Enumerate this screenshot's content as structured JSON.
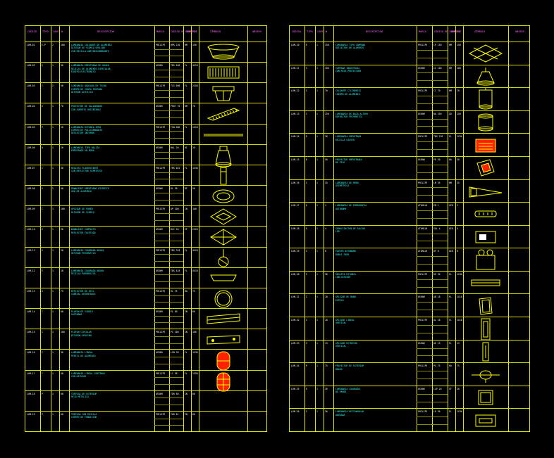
{
  "colors": {
    "background": "#000000",
    "grid": "#e6e600",
    "header_text": "#ff66ff",
    "text_cyan": "#33ffff",
    "text_white": "#ffffff",
    "symbol": "#ffff00",
    "accent_red": "#ff2200"
  },
  "left_sheet": {
    "headers": [
      "CÓDIGO",
      "TIPO",
      "CANT",
      "W",
      "DESCRIPCIÓN",
      "MARCA",
      "CÓDIGO DE FÁBRICA",
      "LAMP",
      "POT",
      "SÍMBOLO",
      "OBSERV."
    ],
    "rows": [
      {
        "code": "LUM-01",
        "col2": "E-P",
        "col3": "2",
        "col4": "100",
        "desc": [
          "LUMINARIA COLGANTE DE ALUMINIO",
          "DIFUSOR DE VIDRIO OPALINO",
          "CON REJILLA ANTIDESLUMBRANTE"
        ],
        "brand": "PHILIPS",
        "model": "HPK 150",
        "lamp": "HM",
        "pot": "150"
      },
      {
        "code": "LUM-02",
        "col2": "E",
        "col3": "1",
        "col4": "36",
        "desc": [
          "LUMINARIA EMPOTRADA DE 60X60",
          "REJILLA DE ALUMINIO ESPECULAR",
          "EQUIPO ELECTRÓNICO"
        ],
        "brand": "OSRAM",
        "model": "TBS 460",
        "lamp": "FL",
        "pot": "4X18"
      },
      {
        "code": "LUM-03",
        "col2": "C",
        "col3": "2",
        "col4": "58",
        "desc": [
          "LUMINARIA ADOSADA DE TECHO",
          "CUERPO DE CHAPA PINTADA",
          "DIFUSOR ACRÍLICO"
        ],
        "brand": "PHILIPS",
        "model": "TCS 098",
        "lamp": "FL",
        "pot": "2X58"
      },
      {
        "code": "LUM-04",
        "col2": "E",
        "col3": "1",
        "col4": "70",
        "desc": [
          "PROYECTOR DE HALOGENURO",
          "CON SOPORTE ORIENTABLE"
        ],
        "brand": "OSRAM",
        "model": "PROY 70",
        "lamp": "HM",
        "pot": "70"
      },
      {
        "code": "LUM-05",
        "col2": "P",
        "col3": "1",
        "col4": "18",
        "desc": [
          "LUMINARIA ESTANCA IP65",
          "CUERPO DE POLICARBONATO",
          "REFLECTOR INTERNO"
        ],
        "brand": "PHILIPS",
        "model": "TCW 060",
        "lamp": "FL",
        "pot": "1X18"
      },
      {
        "code": "LUM-06",
        "col2": "A",
        "col3": "1",
        "col4": "20",
        "desc": [
          "LUMINARIA TIPO BALIZA",
          "EMPOTRADA EN MURO"
        ],
        "brand": "OSRAM",
        "model": "BAL 20",
        "lamp": "DI",
        "pot": "20"
      },
      {
        "code": "LUM-07",
        "col2": "C",
        "col3": "1",
        "col4": "36",
        "desc": [
          "REGLETA FLUORESCENTE",
          "CON REFLECTOR SIMÉTRICO"
        ],
        "brand": "PHILIPS",
        "model": "TMS 022",
        "lamp": "FL",
        "pot": "1X36"
      },
      {
        "code": "LUM-08",
        "col2": "E",
        "col3": "2",
        "col4": "50",
        "desc": [
          "DOWNLIGHT EMPOTRADO DICROICO",
          "ARO DE ALUMINIO"
        ],
        "brand": "OSRAM",
        "model": "DL 50",
        "lamp": "DI",
        "pot": "50"
      },
      {
        "code": "LUM-09",
        "col2": "C",
        "col3": "1",
        "col4": "100",
        "desc": [
          "APLIQUE DE PARED",
          "DIFUSOR DE VIDRIO"
        ],
        "brand": "PHILIPS",
        "model": "AP 100",
        "lamp": "IN",
        "pot": "100"
      },
      {
        "code": "LUM-10",
        "col2": "E",
        "col3": "1",
        "col4": "26",
        "desc": [
          "DOWNLIGHT COMPACTO",
          "REFLECTOR FACETADO"
        ],
        "brand": "OSRAM",
        "model": "DLC 26",
        "lamp": "CF",
        "pot": "2X26"
      },
      {
        "code": "LUM-11",
        "col2": "E",
        "col3": "1",
        "col4": "18",
        "desc": [
          "LUMINARIA CUADRADA 60X60",
          "DIFUSOR PRISMÁTICO"
        ],
        "brand": "PHILIPS",
        "model": "TBS 318",
        "lamp": "FL",
        "pot": "4X18"
      },
      {
        "code": "LUM-12",
        "col2": "E",
        "col3": "1",
        "col4": "18",
        "desc": [
          "LUMINARIA CUADRADA 60X60",
          "REJILLA PARABÓLICA"
        ],
        "brand": "OSRAM",
        "model": "TBS 418",
        "lamp": "FL",
        "pot": "4X18"
      },
      {
        "code": "LUM-13",
        "col2": "C",
        "col3": "1",
        "col4": "75",
        "desc": [
          "REFLECTOR DE RIEL",
          "CABEZAL ORIENTABLE"
        ],
        "brand": "PHILIPS",
        "model": "RL 75",
        "lamp": "HA",
        "pot": "75"
      },
      {
        "code": "LUM-14",
        "col2": "C",
        "col3": "1",
        "col4": "60",
        "desc": [
          "PLAFÓN DE VIDRIO",
          "SATINADO"
        ],
        "brand": "OSRAM",
        "model": "PL 60",
        "lamp": "IN",
        "pot": "60"
      },
      {
        "code": "LUM-15",
        "col2": "C",
        "col3": "1",
        "col4": "100",
        "desc": [
          "PLAFÓN CIRCULAR",
          "DIFUSOR OPALINO"
        ],
        "brand": "PHILIPS",
        "model": "PC 100",
        "lamp": "IN",
        "pot": "100"
      },
      {
        "code": "LUM-16",
        "col2": "C",
        "col3": "1",
        "col4": "36",
        "desc": [
          "LUMINARIA LINEAL",
          "PERFIL DE ALUMINIO"
        ],
        "brand": "OSRAM",
        "model": "LIN 36",
        "lamp": "FL",
        "pot": "1X36"
      },
      {
        "code": "LUM-17",
        "col2": "C",
        "col3": "1",
        "col4": "58",
        "desc": [
          "LUMINARIA LINEAL CONTINUA",
          "CON DIFUSOR"
        ],
        "brand": "PHILIPS",
        "model": "LC 58",
        "lamp": "FL",
        "pot": "1X58"
      },
      {
        "code": "LUM-18",
        "col2": "P",
        "col3": "1",
        "col4": "60",
        "desc": [
          "TORTUGA DE EXTERIOR",
          "REJA METÁLICA"
        ],
        "brand": "OSRAM",
        "model": "TOR 60",
        "lamp": "IN",
        "pot": "60"
      },
      {
        "code": "LUM-19",
        "col2": "P",
        "col3": "1",
        "col4": "60",
        "desc": [
          "TORTUGA CON REJILLA",
          "CUERPO DE FUNDICIÓN"
        ],
        "brand": "PHILIPS",
        "model": "TOR 61",
        "lamp": "IN",
        "pot": "60"
      }
    ]
  },
  "right_sheet": {
    "headers": [
      "CÓDIGO",
      "TIPO",
      "CANT",
      "W",
      "DESCRIPCIÓN",
      "MARCA",
      "CÓDIGO DE FÁBRICA",
      "LAMP",
      "POT",
      "SÍMBOLO",
      "OBSERV."
    ],
    "rows": [
      {
        "code": "LUM-20",
        "col2": "E",
        "col3": "1",
        "col4": "150",
        "desc": [
          "LUMINARIA TIPO CAMPANA",
          "REFLECTOR DE ALUMINIO"
        ],
        "brand": "PHILIPS",
        "model": "CP 150",
        "lamp": "HM",
        "pot": "150"
      },
      {
        "code": "LUM-21",
        "col2": "C",
        "col3": "1",
        "col4": "100",
        "desc": [
          "CAMPANA INDUSTRIAL",
          "CON REJA PROTECTORA"
        ],
        "brand": "OSRAM",
        "model": "CI 100",
        "lamp": "HM",
        "pot": "100"
      },
      {
        "code": "LUM-22",
        "col2": "C",
        "col3": "1",
        "col4": "70",
        "desc": [
          "COLGANTE CILÍNDRICO",
          "CUERPO DE ALUMINIO"
        ],
        "brand": "PHILIPS",
        "model": "CC 70",
        "lamp": "HM",
        "pot": "70"
      },
      {
        "code": "LUM-23",
        "col2": "C",
        "col3": "1",
        "col4": "250",
        "desc": [
          "LUMINARIA DE BAJA ALTURA",
          "REFRACTOR PRISMÁTICO"
        ],
        "brand": "OSRAM",
        "model": "BA 250",
        "lamp": "SO",
        "pot": "250"
      },
      {
        "code": "LUM-24",
        "col2": "E",
        "col3": "1",
        "col4": "36",
        "desc": [
          "LUMINARIA EMPOTRADA",
          "REJILLA LOUVER"
        ],
        "brand": "PHILIPS",
        "model": "TBS 236",
        "lamp": "FL",
        "pot": "2X36"
      },
      {
        "code": "LUM-25",
        "col2": "E",
        "col3": "1",
        "col4": "50",
        "desc": [
          "PROYECTOR EMPOTRABLE",
          "DE PISO"
        ],
        "brand": "OSRAM",
        "model": "PE 50",
        "lamp": "HA",
        "pot": "50"
      },
      {
        "code": "LUM-26",
        "col2": "C",
        "col3": "1",
        "col4": "35",
        "desc": [
          "LUMINARIA DE MURO",
          "ASIMÉTRICA"
        ],
        "brand": "PHILIPS",
        "model": "LM 35",
        "lamp": "HM",
        "pot": "35"
      },
      {
        "code": "LUM-27",
        "col2": "E",
        "col3": "1",
        "col4": "1",
        "desc": [
          "LUMINARIA DE EMERGENCIA",
          "AUTÓNOMA"
        ],
        "brand": "ATOMLUX",
        "model": "EM 1",
        "lamp": "LED",
        "pot": "1"
      },
      {
        "code": "LUM-28",
        "col2": "E",
        "col3": "1",
        "col4": "4",
        "desc": [
          "SEÑALIZACIÓN DE SALIDA",
          "LED"
        ],
        "brand": "ATOMLUX",
        "model": "SAL 4",
        "lamp": "LED",
        "pot": "4"
      },
      {
        "code": "LUM-29",
        "col2": "C",
        "col3": "1",
        "col4": "8",
        "desc": [
          "EQUIPO AUTÓNOMO",
          "DOBLE FARO"
        ],
        "brand": "ATOMLUX",
        "model": "DF 8",
        "lamp": "LED",
        "pot": "8"
      },
      {
        "code": "LUM-30",
        "col2": "C",
        "col3": "1",
        "col4": "36",
        "desc": [
          "REGLETA ESTANCA",
          "CON DIFUSOR"
        ],
        "brand": "PHILIPS",
        "model": "RE 36",
        "lamp": "FL",
        "pot": "1X36"
      },
      {
        "code": "LUM-31",
        "col2": "C",
        "col3": "1",
        "col4": "18",
        "desc": [
          "APLIQUE DE BAÑO",
          "ESPEJO"
        ],
        "brand": "OSRAM",
        "model": "AB 18",
        "lamp": "FL",
        "pot": "1X18"
      },
      {
        "code": "LUM-32",
        "col2": "C",
        "col3": "1",
        "col4": "18",
        "desc": [
          "APLIQUE LINEAL",
          "VERTICAL"
        ],
        "brand": "PHILIPS",
        "model": "AL 18",
        "lamp": "FL",
        "pot": "1X18"
      },
      {
        "code": "LUM-33",
        "col2": "C",
        "col3": "1",
        "col4": "13",
        "desc": [
          "APLIQUE ESTRECHO",
          "VERTICAL"
        ],
        "brand": "OSRAM",
        "model": "AE 13",
        "lamp": "FL",
        "pot": "13"
      },
      {
        "code": "LUM-34",
        "col2": "P",
        "col3": "1",
        "col4": "75",
        "desc": [
          "PROYECTOR DE EXTERIOR",
          "BRAZO"
        ],
        "brand": "PHILIPS",
        "model": "PX 75",
        "lamp": "HA",
        "pot": "75"
      },
      {
        "code": "LUM-35",
        "col2": "E",
        "col3": "1",
        "col4": "26",
        "desc": [
          "LUMINARIA CUADRADA",
          "DE PARED"
        ],
        "brand": "OSRAM",
        "model": "LCP 26",
        "lamp": "CF",
        "pot": "26"
      },
      {
        "code": "LUM-36",
        "col2": "C",
        "col3": "1",
        "col4": "36",
        "desc": [
          "LUMINARIA RECTANGULAR",
          "ADOSADA"
        ],
        "brand": "PHILIPS",
        "model": "LR 36",
        "lamp": "FL",
        "pot": "1X36"
      }
    ]
  }
}
